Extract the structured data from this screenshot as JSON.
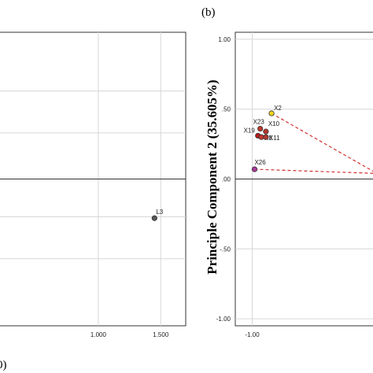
{
  "chart_data": [
    {
      "type": "scatter",
      "panel_label": "",
      "xlim": [
        0.2,
        1.7
      ],
      "ylim": [
        -1.05,
        1.05
      ],
      "x_ticks": [
        {
          "value": 1.0,
          "label": "1.000"
        },
        {
          "value": 1.5,
          "label": "1.500"
        }
      ],
      "y_ticks": [],
      "grid": true,
      "reference_line_y": 0,
      "points": [
        {
          "label": "L3",
          "x": 1.45,
          "y": -0.28,
          "color": "#555555"
        }
      ]
    },
    {
      "type": "scatter",
      "panel_label": "(b)",
      "ylabel": "Principle Component 2 (35.605%)",
      "xlim": [
        -1.15,
        0.1
      ],
      "ylim": [
        -1.05,
        1.05
      ],
      "x_ticks": [
        {
          "value": -1.0,
          "label": "-1.00"
        }
      ],
      "y_ticks": [
        {
          "value": 1.0,
          "label": "1.00"
        },
        {
          "value": 0.5,
          "label": ".50"
        },
        {
          "value": 0.0,
          "label": ".00"
        },
        {
          "value": -0.5,
          "label": "-.50"
        },
        {
          "value": -1.0,
          "label": "-1.00"
        }
      ],
      "grid": true,
      "reference_line_y": 0,
      "points": [
        {
          "label": "X2",
          "x": -0.83,
          "y": 0.47,
          "color": "#f2d21b"
        },
        {
          "label": "X23",
          "x": -0.93,
          "y": 0.36,
          "color": "#c0392b"
        },
        {
          "label": "X10",
          "x": -0.88,
          "y": 0.34,
          "color": "#b03a2e"
        },
        {
          "label": "X19",
          "x": -0.95,
          "y": 0.31,
          "color": "#b71c1c"
        },
        {
          "label": "X8",
          "x": -0.92,
          "y": 0.3,
          "color": "#c0392b"
        },
        {
          "label": "X11",
          "x": -0.88,
          "y": 0.3,
          "color": "#b03a2e"
        },
        {
          "label": "X26",
          "x": -0.98,
          "y": 0.07,
          "color": "#a83a9a"
        }
      ],
      "arrows": [
        {
          "from": "X2",
          "to_x": 0.1,
          "to_y": 0.04,
          "color": "#d32f2f"
        },
        {
          "from": "X26",
          "to_x": 0.1,
          "to_y": 0.04,
          "color": "#d32f2f"
        }
      ]
    }
  ],
  "bottom_left_fragment": "0)"
}
